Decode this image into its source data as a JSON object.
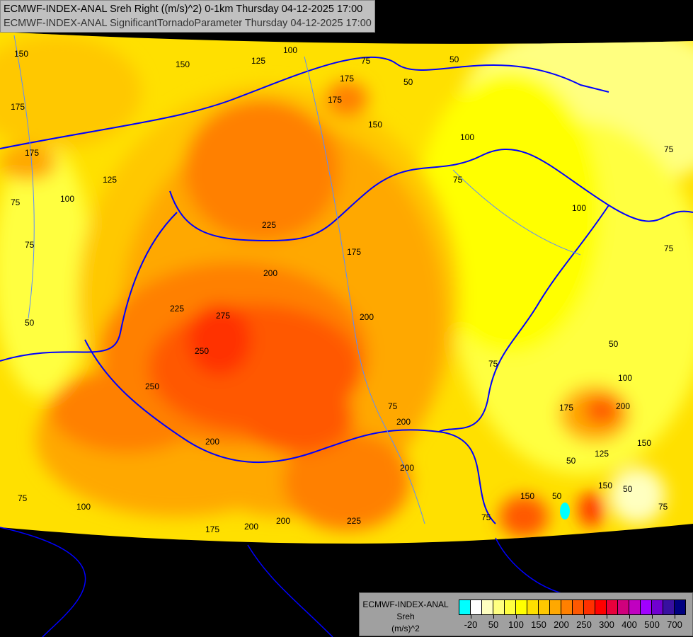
{
  "header": {
    "line1": "ECMWF-INDEX-ANAL Sreh Right ((m/s)^2) 0-1km Thursday 04-12-2025 17:00",
    "line2": "ECMWF-INDEX-ANAL SignificantTornadoParameter Thursday 04-12-2025 17:00"
  },
  "legend": {
    "model": "ECMWF-INDEX-ANAL",
    "variable": "Sreh",
    "unit": "(m/s)^2",
    "colors": [
      "#00ffff",
      "#ffffff",
      "#ffffc0",
      "#ffff80",
      "#ffff40",
      "#ffff00",
      "#ffe000",
      "#ffc800",
      "#ffa800",
      "#ff8000",
      "#ff5800",
      "#ff3000",
      "#ff0000",
      "#e8003c",
      "#d0007c",
      "#c000c0",
      "#a000ff",
      "#7000d0",
      "#3810a0",
      "#000080"
    ],
    "tick_labels": [
      "-20",
      "50",
      "100",
      "150",
      "200",
      "250",
      "300",
      "400",
      "500",
      "700"
    ]
  },
  "contour_labels": [
    "150",
    "150",
    "125",
    "100",
    "75",
    "50",
    "50",
    "175",
    "175",
    "150",
    "100",
    "175",
    "125",
    "75",
    "100",
    "75",
    "75",
    "225",
    "175",
    "200",
    "200",
    "100",
    "75",
    "75",
    "50",
    "225",
    "275",
    "250",
    "250",
    "200",
    "200",
    "175",
    "50",
    "100",
    "75",
    "175",
    "200",
    "125",
    "150",
    "150",
    "75",
    "50",
    "150",
    "50",
    "75",
    "200",
    "200",
    "225",
    "100",
    "175",
    "200",
    "75",
    "75",
    "50"
  ],
  "colors": {
    "border": "#0000ff",
    "river": "#5a8cff",
    "background": "#000000"
  }
}
